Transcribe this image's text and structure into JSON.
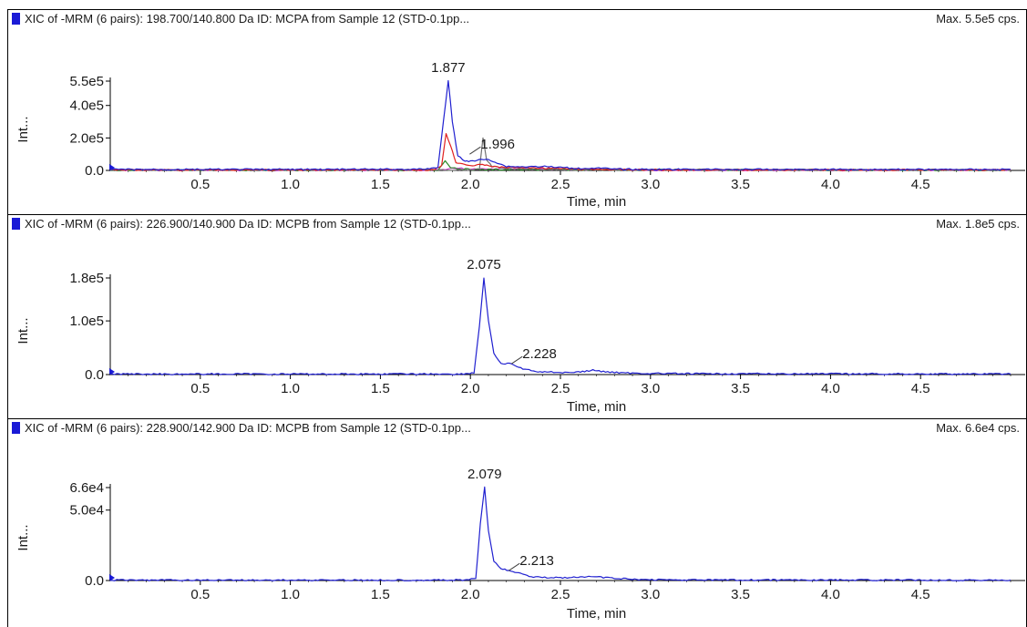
{
  "panels": [
    {
      "title": "XIC of -MRM (6 pairs): 198.700/140.800 Da ID: MCPA from Sample 12 (STD-0.1pp...",
      "max_label": "Max. 5.5e5 cps.",
      "title_color": "#1a1ad6"
    },
    {
      "title": "XIC of -MRM (6 pairs): 226.900/140.900 Da ID: MCPB from Sample 12 (STD-0.1pp...",
      "max_label": "Max. 1.8e5 cps.",
      "title_color": "#1a1ad6"
    },
    {
      "title": "XIC of -MRM (6 pairs): 228.900/142.900 Da ID: MCPB from Sample 12 (STD-0.1pp...",
      "max_label": "Max. 6.6e4 cps.",
      "title_color": "#1a1ad6"
    }
  ],
  "chart_data": [
    {
      "type": "line",
      "xlabel": "Time, min",
      "ylabel": "Int...",
      "xlim": [
        0,
        5
      ],
      "ylim": [
        0,
        550000
      ],
      "xticks": [
        "0.5",
        "1.0",
        "1.5",
        "2.0",
        "2.5",
        "3.0",
        "3.5",
        "4.0",
        "4.5"
      ],
      "xtick_values": [
        0.5,
        1.0,
        1.5,
        2.0,
        2.5,
        3.0,
        3.5,
        4.0,
        4.5
      ],
      "yticks": [
        "0.0",
        "2.0e5",
        "4.0e5",
        "5.5e5"
      ],
      "ytick_values": [
        0,
        200000,
        400000,
        550000
      ],
      "peak_labels": [
        {
          "text": "1.877",
          "x": 1.877,
          "y": 550000
        },
        {
          "text": "1.996",
          "x": 1.996,
          "y": 100000
        }
      ],
      "series": [
        {
          "color": "#2020d0",
          "points": [
            [
              0,
              6000
            ],
            [
              1.0,
              6000
            ],
            [
              1.75,
              7000
            ],
            [
              1.82,
              20000
            ],
            [
              1.85,
              300000
            ],
            [
              1.877,
              550000
            ],
            [
              1.9,
              300000
            ],
            [
              1.93,
              90000
            ],
            [
              1.97,
              60000
            ],
            [
              2.0,
              55000
            ],
            [
              2.05,
              65000
            ],
            [
              2.1,
              70000
            ],
            [
              2.15,
              45000
            ],
            [
              2.2,
              25000
            ],
            [
              2.3,
              22000
            ],
            [
              2.4,
              25000
            ],
            [
              2.5,
              18000
            ],
            [
              2.6,
              12000
            ],
            [
              2.7,
              15000
            ],
            [
              2.8,
              8000
            ],
            [
              3.0,
              6000
            ],
            [
              5,
              6000
            ]
          ]
        },
        {
          "color": "#e02020",
          "points": [
            [
              0,
              3000
            ],
            [
              1.8,
              3000
            ],
            [
              1.84,
              30000
            ],
            [
              1.865,
              230000
            ],
            [
              1.89,
              150000
            ],
            [
              1.92,
              50000
            ],
            [
              2.0,
              30000
            ],
            [
              2.08,
              35000
            ],
            [
              2.15,
              20000
            ],
            [
              2.4,
              15000
            ],
            [
              2.6,
              8000
            ],
            [
              3.0,
              3000
            ],
            [
              5,
              3000
            ]
          ]
        },
        {
          "color": "#707070",
          "points": [
            [
              0,
              3000
            ],
            [
              2.0,
              3000
            ],
            [
              2.05,
              10000
            ],
            [
              2.07,
              200000
            ],
            [
              2.09,
              60000
            ],
            [
              2.12,
              25000
            ],
            [
              2.2,
              10000
            ],
            [
              2.5,
              5000
            ],
            [
              5,
              3000
            ]
          ]
        },
        {
          "color": "#2a8a2a",
          "points": [
            [
              0,
              2000
            ],
            [
              1.82,
              2000
            ],
            [
              1.86,
              60000
            ],
            [
              1.89,
              20000
            ],
            [
              1.95,
              8000
            ],
            [
              2.1,
              5000
            ],
            [
              5,
              2000
            ]
          ]
        },
        {
          "color": "#d040d0",
          "points": [
            [
              0,
              1500
            ],
            [
              1.85,
              1500
            ],
            [
              1.9,
              15000
            ],
            [
              2.0,
              10000
            ],
            [
              2.2,
              12000
            ],
            [
              2.5,
              6000
            ],
            [
              3.0,
              2000
            ],
            [
              5,
              1500
            ]
          ]
        }
      ]
    },
    {
      "type": "line",
      "xlabel": "Time, min",
      "ylabel": "Int...",
      "xlim": [
        0,
        5
      ],
      "ylim": [
        0,
        180000
      ],
      "xticks": [
        "0.5",
        "1.0",
        "1.5",
        "2.0",
        "2.5",
        "3.0",
        "3.5",
        "4.0",
        "4.5"
      ],
      "xtick_values": [
        0.5,
        1.0,
        1.5,
        2.0,
        2.5,
        3.0,
        3.5,
        4.0,
        4.5
      ],
      "yticks": [
        "0.0",
        "1.0e5",
        "1.8e5"
      ],
      "ytick_values": [
        0,
        100000,
        180000
      ],
      "peak_labels": [
        {
          "text": "2.075",
          "x": 2.075,
          "y": 180000
        },
        {
          "text": "2.228",
          "x": 2.228,
          "y": 20000
        }
      ],
      "series": [
        {
          "color": "#2020d0",
          "points": [
            [
              0,
              1000
            ],
            [
              1.5,
              1000
            ],
            [
              1.95,
              1000
            ],
            [
              2.02,
              3000
            ],
            [
              2.05,
              90000
            ],
            [
              2.075,
              180000
            ],
            [
              2.1,
              100000
            ],
            [
              2.13,
              40000
            ],
            [
              2.17,
              20000
            ],
            [
              2.228,
              20000
            ],
            [
              2.28,
              12000
            ],
            [
              2.35,
              6000
            ],
            [
              2.5,
              4000
            ],
            [
              2.6,
              4500
            ],
            [
              2.68,
              8000
            ],
            [
              2.75,
              5000
            ],
            [
              2.9,
              2500
            ],
            [
              3.2,
              1500
            ],
            [
              5,
              1000
            ]
          ]
        }
      ]
    },
    {
      "type": "line",
      "xlabel": "Time, min",
      "ylabel": "Int...",
      "xlim": [
        0,
        5
      ],
      "ylim": [
        0,
        66000
      ],
      "xticks": [
        "0.5",
        "1.0",
        "1.5",
        "2.0",
        "2.5",
        "3.0",
        "3.5",
        "4.0",
        "4.5"
      ],
      "xtick_values": [
        0.5,
        1.0,
        1.5,
        2.0,
        2.5,
        3.0,
        3.5,
        4.0,
        4.5
      ],
      "yticks": [
        "0.0",
        "5.0e4",
        "6.6e4"
      ],
      "ytick_values": [
        0,
        50000,
        66000
      ],
      "peak_labels": [
        {
          "text": "2.079",
          "x": 2.079,
          "y": 66000
        },
        {
          "text": "2.213",
          "x": 2.213,
          "y": 7000
        }
      ],
      "series": [
        {
          "color": "#2020d0",
          "points": [
            [
              0,
              300
            ],
            [
              1.5,
              300
            ],
            [
              1.98,
              300
            ],
            [
              2.03,
              1500
            ],
            [
              2.055,
              40000
            ],
            [
              2.079,
              66000
            ],
            [
              2.1,
              35000
            ],
            [
              2.13,
              14000
            ],
            [
              2.17,
              8500
            ],
            [
              2.213,
              7000
            ],
            [
              2.28,
              5000
            ],
            [
              2.35,
              2500
            ],
            [
              2.5,
              2000
            ],
            [
              2.6,
              2200
            ],
            [
              2.68,
              3000
            ],
            [
              2.75,
              2000
            ],
            [
              2.9,
              800
            ],
            [
              3.2,
              400
            ],
            [
              5,
              300
            ]
          ]
        }
      ]
    }
  ]
}
